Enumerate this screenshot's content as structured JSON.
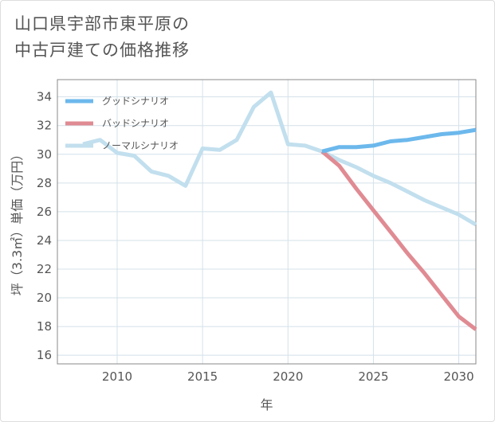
{
  "title_lines": [
    "山口県宇部市東平原の",
    "中古戸建ての価格推移"
  ],
  "chart_data": {
    "type": "line",
    "title": "山口県宇部市東平原の中古戸建ての価格推移",
    "xlabel": "年",
    "ylabel": "坪（3.3㎡）単価（万円）",
    "xlim": [
      2006.5,
      2031
    ],
    "ylim": [
      15.4,
      35.2
    ],
    "xticks": [
      2010,
      2015,
      2020,
      2025,
      2030
    ],
    "yticks": [
      16,
      18,
      20,
      22,
      24,
      26,
      28,
      30,
      32,
      34
    ],
    "grid": true,
    "legend_position": "top-left",
    "series": [
      {
        "name": "グッドシナリオ",
        "color": "#6cb8ec",
        "x": [
          2022,
          2023,
          2024,
          2025,
          2026,
          2027,
          2028,
          2029,
          2030,
          2031
        ],
        "values": [
          30.2,
          30.5,
          30.5,
          30.6,
          30.9,
          31.0,
          31.2,
          31.4,
          31.5,
          31.7
        ]
      },
      {
        "name": "バッドシナリオ",
        "color": "#e08b93",
        "x": [
          2022,
          2023,
          2024,
          2025,
          2026,
          2027,
          2028,
          2029,
          2030,
          2031
        ],
        "values": [
          30.2,
          29.2,
          27.6,
          26.1,
          24.6,
          23.1,
          21.7,
          20.2,
          18.7,
          17.8
        ]
      },
      {
        "name": "ノーマルシナリオ",
        "color": "#c2dfee",
        "x": [
          2008,
          2009,
          2010,
          2011,
          2012,
          2013,
          2014,
          2015,
          2016,
          2017,
          2018,
          2019,
          2020,
          2021,
          2022,
          2023,
          2024,
          2025,
          2026,
          2027,
          2028,
          2029,
          2030,
          2031
        ],
        "values": [
          30.7,
          31.0,
          30.1,
          29.9,
          28.8,
          28.5,
          27.8,
          30.4,
          30.3,
          31.0,
          33.3,
          34.3,
          30.7,
          30.6,
          30.2,
          29.6,
          29.1,
          28.5,
          28.0,
          27.4,
          26.8,
          26.3,
          25.8,
          25.1
        ]
      }
    ]
  }
}
